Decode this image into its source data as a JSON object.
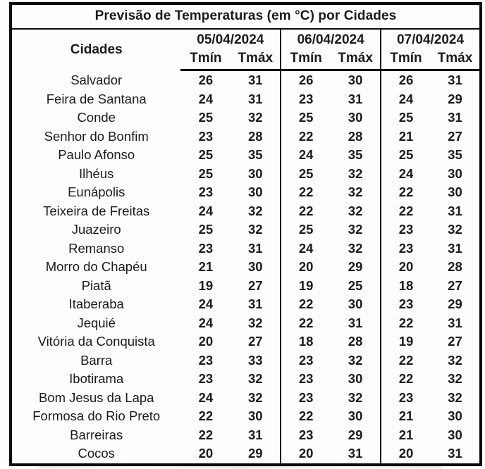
{
  "table": {
    "title": "Previsão de Temperaturas (em °C) por Cidades",
    "city_header": "Cidades",
    "date_groups": [
      "05/04/2024",
      "06/04/2024",
      "07/04/2024"
    ],
    "sub_headers": {
      "tmin": "Tmín",
      "tmax": "Tmáx"
    },
    "rows": [
      {
        "city": "Salvador",
        "temps": [
          26,
          31,
          26,
          30,
          26,
          31
        ]
      },
      {
        "city": "Feira de Santana",
        "temps": [
          24,
          31,
          23,
          31,
          24,
          29
        ]
      },
      {
        "city": "Conde",
        "temps": [
          25,
          32,
          25,
          30,
          25,
          31
        ]
      },
      {
        "city": "Senhor do Bonfim",
        "temps": [
          23,
          28,
          22,
          28,
          21,
          27
        ]
      },
      {
        "city": "Paulo Afonso",
        "temps": [
          25,
          35,
          24,
          35,
          25,
          35
        ]
      },
      {
        "city": "Ilhéus",
        "temps": [
          25,
          30,
          25,
          32,
          24,
          30
        ]
      },
      {
        "city": "Eunápolis",
        "temps": [
          23,
          30,
          22,
          32,
          22,
          30
        ]
      },
      {
        "city": "Teixeira de Freitas",
        "temps": [
          24,
          32,
          22,
          32,
          22,
          31
        ]
      },
      {
        "city": "Juazeiro",
        "temps": [
          25,
          32,
          25,
          32,
          23,
          32
        ]
      },
      {
        "city": "Remanso",
        "temps": [
          23,
          31,
          24,
          32,
          23,
          31
        ]
      },
      {
        "city": "Morro do Chapéu",
        "temps": [
          21,
          30,
          20,
          29,
          20,
          28
        ]
      },
      {
        "city": "Piatã",
        "temps": [
          19,
          27,
          19,
          25,
          18,
          27
        ]
      },
      {
        "city": "Itaberaba",
        "temps": [
          24,
          31,
          22,
          30,
          23,
          29
        ]
      },
      {
        "city": "Jequié",
        "temps": [
          24,
          32,
          22,
          31,
          22,
          31
        ]
      },
      {
        "city": "Vitória da Conquista",
        "temps": [
          20,
          27,
          18,
          28,
          19,
          27
        ]
      },
      {
        "city": "Barra",
        "temps": [
          23,
          33,
          23,
          32,
          22,
          32
        ]
      },
      {
        "city": "Ibotirama",
        "temps": [
          23,
          32,
          23,
          30,
          22,
          32
        ]
      },
      {
        "city": "Bom Jesus da Lapa",
        "temps": [
          24,
          32,
          23,
          32,
          23,
          32
        ]
      },
      {
        "city": "Formosa do Rio Preto",
        "temps": [
          22,
          30,
          22,
          30,
          21,
          30
        ]
      },
      {
        "city": "Barreiras",
        "temps": [
          22,
          31,
          23,
          29,
          21,
          30
        ]
      },
      {
        "city": "Cocos",
        "temps": [
          20,
          29,
          20,
          31,
          20,
          31
        ]
      }
    ]
  },
  "colors": {
    "border": "#0a0a0a",
    "text": "#1b1b1b",
    "background": "#fdfdfd"
  }
}
